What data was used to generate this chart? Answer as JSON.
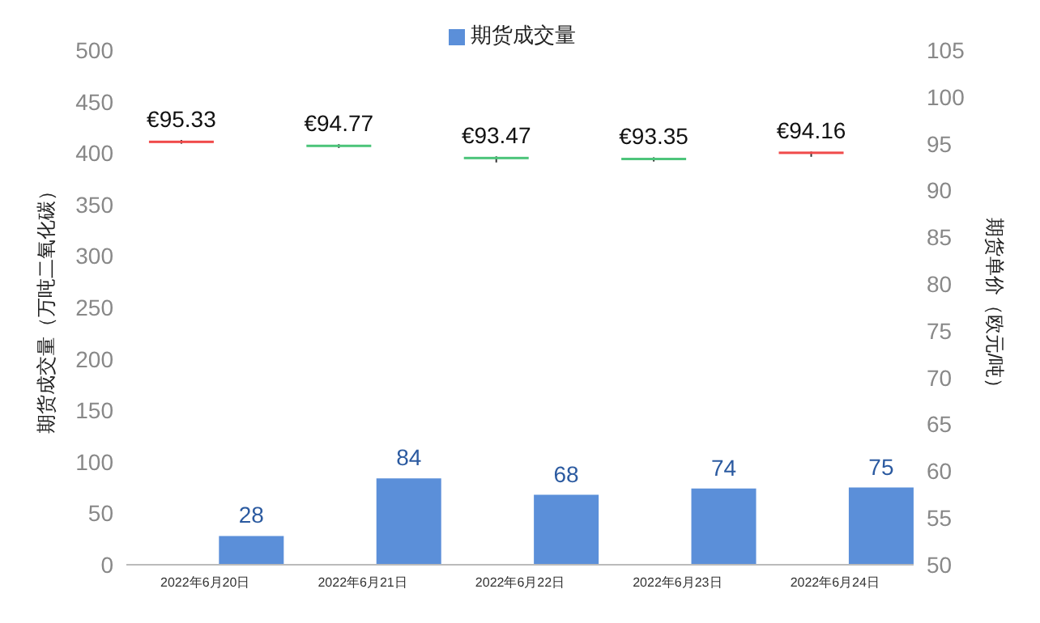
{
  "chart_data": {
    "type": "bar",
    "categories": [
      "2022年6月20日",
      "2022年6月21日",
      "2022年6月22日",
      "2022年6月23日",
      "2022年6月24日"
    ],
    "ylabel": "期货成交量（万吨二氧化碳）",
    "y2label": "期货单价（欧元/吨）",
    "ylim": [
      0,
      500
    ],
    "yticks": [
      0,
      50,
      100,
      150,
      200,
      250,
      300,
      350,
      400,
      450,
      500
    ],
    "y2lim": [
      50,
      105
    ],
    "y2ticks": [
      50,
      55,
      60,
      65,
      70,
      75,
      80,
      85,
      90,
      95,
      100,
      105
    ],
    "series": [
      {
        "name": "期货成交量",
        "color": "#5b8fd9",
        "values": [
          28,
          84,
          68,
          74,
          75
        ],
        "data_labels": true
      },
      {
        "type": "candlestick",
        "axis": "y2",
        "value_labels": [
          "€95.33",
          "€94.77",
          "€93.47",
          "€93.35",
          "€94.16"
        ],
        "colors": [
          "#f04a4a",
          "#4cc47a",
          "#4cc47a",
          "#4cc47a",
          "#f04a4a"
        ],
        "ohlc": [
          [
            95.25,
            95.4,
            95.0,
            95.33
          ],
          [
            94.9,
            94.95,
            94.55,
            94.77
          ],
          [
            93.6,
            93.65,
            93.0,
            93.47
          ],
          [
            93.5,
            93.55,
            93.1,
            93.35
          ],
          [
            93.9,
            94.16,
            93.6,
            94.16
          ]
        ]
      }
    ],
    "legend": "top"
  }
}
